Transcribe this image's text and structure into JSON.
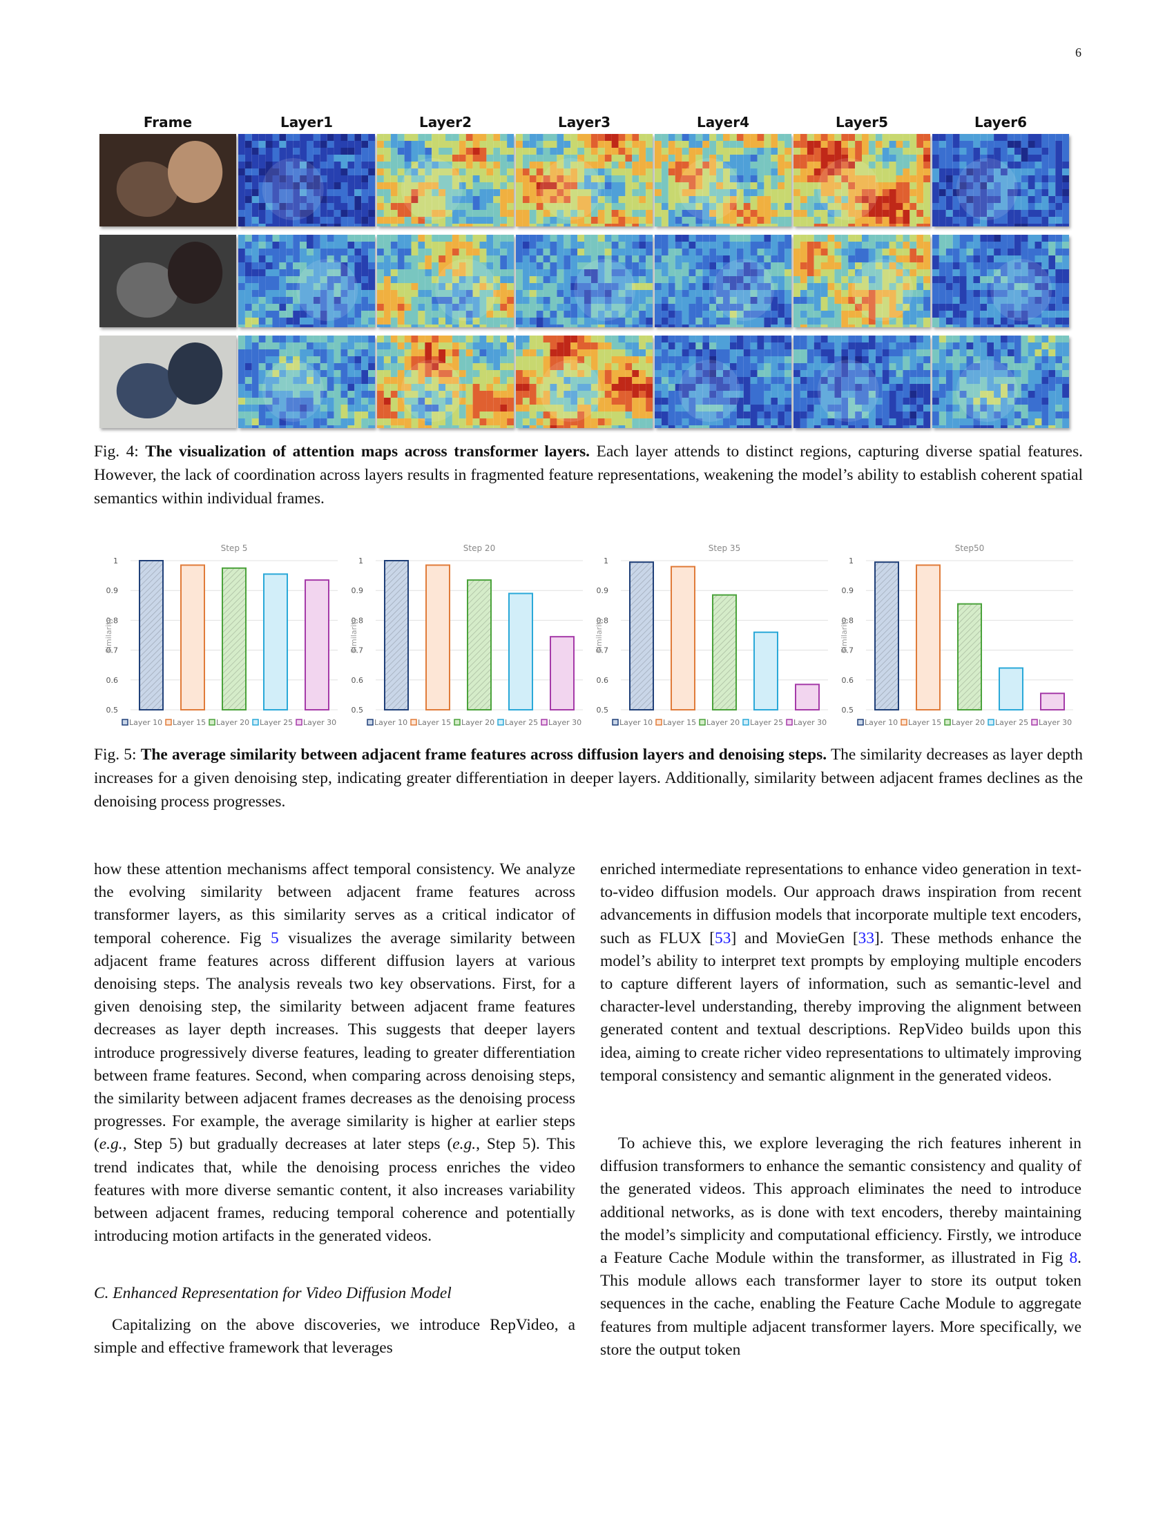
{
  "page_number": "6",
  "fig4": {
    "column_headers": [
      "Frame",
      "Layer1",
      "Layer2",
      "Layer3",
      "Layer4",
      "Layer5",
      "Layer6"
    ],
    "caption_label": "Fig. 4:",
    "caption_title": "The visualization of attention maps across transformer layers.",
    "caption_text": "Each layer attends to distinct regions, capturing diverse spatial features. However, the lack of coordination across layers results in fragmented feature representations, weakening the model’s ability to establish coherent spatial semantics within individual frames."
  },
  "chart_data": [
    {
      "type": "bar",
      "title": "Step 5",
      "ylabel": "Similarity",
      "ylim": [
        0.5,
        1
      ],
      "yticks": [
        "0.5",
        "0.6",
        "0.7",
        "0.8",
        "0.9",
        "1"
      ],
      "grid": true,
      "legend": "bottom",
      "categories": [
        "Layer 10",
        "Layer 15",
        "Layer 20",
        "Layer 25",
        "Layer 30"
      ],
      "values": [
        1.0,
        0.985,
        0.975,
        0.955,
        0.935
      ]
    },
    {
      "type": "bar",
      "title": "Step 20",
      "ylabel": "Similarity",
      "ylim": [
        0.5,
        1
      ],
      "yticks": [
        "0.5",
        "0.6",
        "0.7",
        "0.8",
        "0.9",
        "1"
      ],
      "grid": true,
      "legend": "bottom",
      "categories": [
        "Layer 10",
        "Layer 15",
        "Layer 20",
        "Layer 25",
        "Layer 30"
      ],
      "values": [
        1.0,
        0.985,
        0.935,
        0.89,
        0.745
      ]
    },
    {
      "type": "bar",
      "title": "Step 35",
      "ylabel": "Similarity",
      "ylim": [
        0.5,
        1
      ],
      "yticks": [
        "0.5",
        "0.6",
        "0.7",
        "0.8",
        "0.9",
        "1"
      ],
      "grid": true,
      "legend": "bottom",
      "categories": [
        "Layer 10",
        "Layer 15",
        "Layer 20",
        "Layer 25",
        "Layer 30"
      ],
      "values": [
        0.995,
        0.98,
        0.885,
        0.76,
        0.585
      ]
    },
    {
      "type": "bar",
      "title": "Step50",
      "ylabel": "Similarity",
      "ylim": [
        0.5,
        1
      ],
      "yticks": [
        "0.5",
        "0.6",
        "0.7",
        "0.8",
        "0.9",
        "1"
      ],
      "grid": true,
      "legend": "bottom",
      "categories": [
        "Layer 10",
        "Layer 15",
        "Layer 20",
        "Layer 25",
        "Layer 30"
      ],
      "values": [
        0.995,
        0.985,
        0.855,
        0.64,
        0.555
      ]
    }
  ],
  "chart_colors": {
    "stroke": [
      "#1f3f78",
      "#e07b39",
      "#4aa23a",
      "#29a8d8",
      "#a53aa8"
    ],
    "fill": [
      "#c9d6e8",
      "#fde6d6",
      "#d5ecc9",
      "#d2eef9",
      "#f2d5ef"
    ]
  },
  "fig5": {
    "caption_label": "Fig. 5:",
    "caption_title": "The average similarity between adjacent frame features across diffusion layers and denoising steps.",
    "caption_text": "The similarity decreases as layer depth increases for a given denoising step, indicating greater differentiation in deeper layers. Additionally, similarity between adjacent frames declines as the denoising process progresses."
  },
  "body": {
    "left_p1_a": "how these attention mechanisms affect temporal consistency. We analyze the evolving similarity between adjacent frame features across transformer layers, as this similarity serves as a critical indicator of temporal coherence. Fig ",
    "left_p1_ref": "5",
    "left_p1_b": " visualizes the average similarity between adjacent frame features across different diffusion layers at various denoising steps. The analysis reveals two key observations. First, for a given denoising step, the similarity between adjacent frame features decreases as layer depth increases. This suggests that deeper layers introduce progressively diverse features, leading to greater differentiation between frame features. Second, when comparing across denoising steps, the similarity between adjacent frames decreases as the denoising process progresses. For example, the average similarity is higher at earlier steps (",
    "left_p1_eg1": "e.g.",
    "left_p1_c": ", Step 5) but gradually decreases at later steps (",
    "left_p1_eg2": "e.g.",
    "left_p1_d": ", Step 5). This trend indicates that, while the denoising process enriches the video features with more diverse semantic content, it also increases variability between adjacent frames, reducing temporal coherence and potentially introducing motion artifacts in the generated videos.",
    "section_heading": "C. Enhanced Representation for Video Diffusion Model",
    "left_p2": "Capitalizing on the above discoveries, we introduce RepVideo, a simple and effective framework that leverages",
    "right_p1_a": "enriched intermediate representations to enhance video generation in text-to-video diffusion models. Our approach draws inspiration from recent advancements in diffusion models that incorporate multiple text encoders, such as FLUX [",
    "right_p1_ref1": "53",
    "right_p1_b": "] and MovieGen [",
    "right_p1_ref2": "33",
    "right_p1_c": "]. These methods enhance the model’s ability to interpret text prompts by employing multiple encoders to capture different layers of information, such as semantic-level and character-level understanding, thereby improving the alignment between generated content and textual descriptions. RepVideo builds upon this idea, aiming to create richer video representations to ultimately improving temporal consistency and semantic alignment in the generated videos.",
    "right_p2_a": "To achieve this, we explore leveraging the rich features inherent in diffusion transformers to enhance the semantic consistency and quality of the generated videos. This approach eliminates the need to introduce additional networks, as is done with text encoders, thereby maintaining the model’s simplicity and computational efficiency. Firstly, we introduce a Feature Cache Module within the transformer, as illustrated in Fig ",
    "right_p2_ref": "8",
    "right_p2_b": ". This module allows each transformer layer to store its output token sequences in the cache, enabling the Feature Cache Module to aggregate features from multiple adjacent transformer layers. More specifically, we store the output token"
  }
}
